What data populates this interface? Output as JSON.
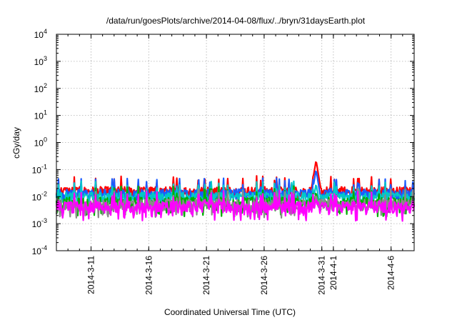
{
  "chart_data": {
    "type": "line",
    "title": "/data/run/goesPlots/archive/2014-04-08/flux/../bryn/31daysEarth.plot",
    "xlabel": "Coordinated Universal Time (UTC)",
    "ylabel": "cGy/day",
    "yscale": "log",
    "ylim": [
      0.0001,
      10000
    ],
    "xlim": [
      "2014-03-08",
      "2014-04-08"
    ],
    "grid": true,
    "legend": "none",
    "y_ticks": [
      {
        "base": "10",
        "exp": "-4",
        "value": 0.0001
      },
      {
        "base": "10",
        "exp": "-3",
        "value": 0.001
      },
      {
        "base": "10",
        "exp": "-2",
        "value": 0.01
      },
      {
        "base": "10",
        "exp": "-1",
        "value": 0.1
      },
      {
        "base": "10",
        "exp": "0",
        "value": 1
      },
      {
        "base": "10",
        "exp": "1",
        "value": 10
      },
      {
        "base": "10",
        "exp": "2",
        "value": 100
      },
      {
        "base": "10",
        "exp": "3",
        "value": 1000
      },
      {
        "base": "10",
        "exp": "4",
        "value": 10000
      }
    ],
    "x_ticks": [
      {
        "label": "2014-3-11",
        "date": "2014-03-11"
      },
      {
        "label": "2014-3-16",
        "date": "2014-03-16"
      },
      {
        "label": "2014-3-21",
        "date": "2014-03-21"
      },
      {
        "label": "2014-3-26",
        "date": "2014-03-26"
      },
      {
        "label": "2014-3-31",
        "date": "2014-03-31"
      },
      {
        "label": "2014-4-1",
        "date": "2014-04-01"
      },
      {
        "label": "2014-4-6",
        "date": "2014-04-06"
      }
    ],
    "series": [
      {
        "color": "#ff0000",
        "typical": 0.016,
        "spike": {
          "date": "2014-03-30T12:00",
          "value": 0.22
        }
      },
      {
        "color": "#1a5cff",
        "typical": 0.013,
        "spike": {
          "date": "2014-03-30T12:00",
          "value": 0.1
        }
      },
      {
        "color": "#00c8c8",
        "typical": 0.01,
        "spike": {
          "date": "2014-03-30T12:00",
          "value": 0.03
        }
      },
      {
        "color": "#00b000",
        "typical": 0.0065,
        "spike": {
          "date": "2014-03-30T12:00",
          "value": 0.015
        }
      },
      {
        "color": "#8a8a8a",
        "typical": 0.0055,
        "spike": {
          "date": "2014-03-30T12:00",
          "value": 0.012
        }
      },
      {
        "color": "#ff00ff",
        "typical": 0.0045,
        "spike": {
          "date": "2014-03-30T12:00",
          "value": 0.009
        }
      }
    ]
  }
}
